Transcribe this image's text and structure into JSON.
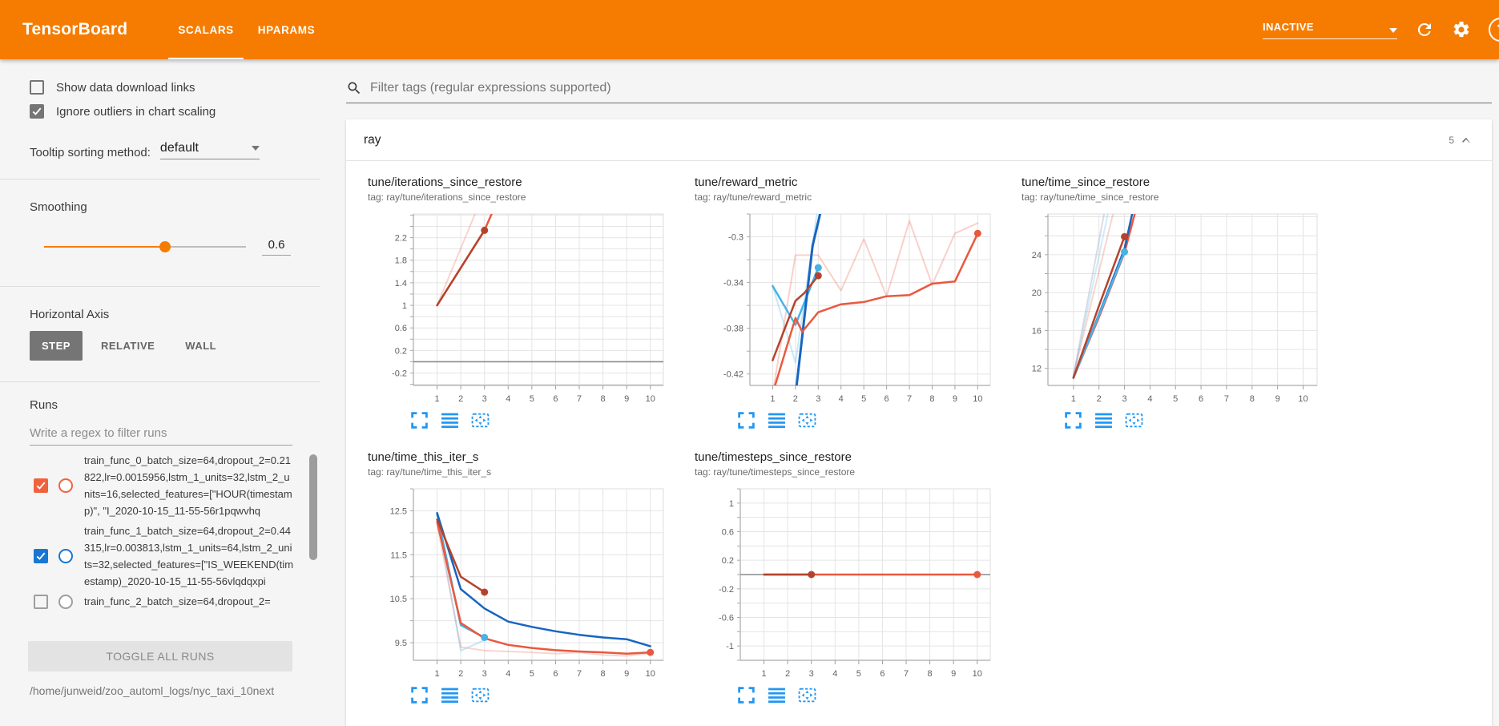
{
  "header": {
    "title": "TensorBoard",
    "tabs": [
      {
        "label": "SCALARS",
        "active": true
      },
      {
        "label": "HPARAMS",
        "active": false
      }
    ],
    "status_dropdown": "INACTIVE",
    "icons": [
      "refresh-icon",
      "settings-icon",
      "help-icon"
    ],
    "accent_color": "#f57c00"
  },
  "sidebar": {
    "checkboxes": [
      {
        "key": "show-download-links",
        "label": "Show data download links",
        "checked": false
      },
      {
        "key": "ignore-outliers",
        "label": "Ignore outliers in chart scaling",
        "checked": true
      }
    ],
    "tooltip_sorting": {
      "label": "Tooltip sorting method:",
      "value": "default"
    },
    "smoothing": {
      "label": "Smoothing",
      "value": "0.6",
      "fraction": 0.6
    },
    "horizontal_axis": {
      "label": "Horizontal Axis",
      "options": [
        "STEP",
        "RELATIVE",
        "WALL"
      ],
      "selected": "STEP"
    },
    "runs": {
      "label": "Runs",
      "filter_placeholder": "Write a regex to filter runs",
      "items": [
        {
          "name": "train_func_0_batch_size=64,dropout_2=0.21822,lr=0.0015956,lstm_1_units=32,lstm_2_units=16,selected_features=[\"HOUR(timestamp)\", \"I_2020-10-15_11-55-56r1pqwvhq",
          "checked": true,
          "color": "#f0623e"
        },
        {
          "name": "train_func_1_batch_size=64,dropout_2=0.44315,lr=0.003813,lstm_1_units=64,lstm_2_units=32,selected_features=[\"IS_WEEKEND(timestamp)_2020-10-15_11-55-56vlqdqxpi",
          "checked": true,
          "color": "#1976d2"
        },
        {
          "name": "train_func_2_batch_size=64,dropout_2=",
          "checked": false,
          "color": "#9e9e9e"
        }
      ],
      "toggle_all_label": "TOGGLE ALL RUNS",
      "log_path": "/home/junweid/zoo_automl_logs/nyc_taxi_10next"
    }
  },
  "main": {
    "filter_placeholder": "Filter tags (regular expressions supported)",
    "group": {
      "name": "ray",
      "count": "5"
    }
  },
  "chart_data": [
    {
      "type": "line",
      "title": "tune/iterations_since_restore",
      "subtitle": "tag: ray/tune/iterations_since_restore",
      "xticks": [
        1,
        2,
        3,
        4,
        5,
        6,
        7,
        8,
        9,
        10
      ],
      "xdomain": [
        0,
        10.55
      ],
      "ylim": [
        -0.42,
        2.62
      ],
      "yticks": [
        [
          -0.2,
          "-0.2"
        ],
        [
          0.2,
          "0.2"
        ],
        [
          0.6,
          "0.6"
        ],
        [
          1,
          "1"
        ],
        [
          1.4,
          "1.4"
        ],
        [
          1.8,
          "1.8"
        ],
        [
          2.2,
          "2.2"
        ]
      ],
      "yminor": 0.2,
      "zero_line": true,
      "series": [
        {
          "name": "run0-raw",
          "color": "#e8593f",
          "opacity": 0.25,
          "width": 2,
          "points": [
            [
              1,
              1
            ],
            [
              2.6,
              2.62
            ]
          ]
        },
        {
          "name": "run0-smoothed",
          "color": "#e8593f",
          "opacity": 1,
          "width": 2.5,
          "points": [
            [
              1,
              1
            ],
            [
              3,
              2.33
            ],
            [
              3.3,
              2.62
            ]
          ]
        },
        {
          "name": "run-darkred-smoothed",
          "color": "#b5432c",
          "opacity": 1,
          "width": 2.5,
          "points": [
            [
              1,
              1
            ],
            [
              3,
              2.33
            ]
          ],
          "dot": [
            3,
            2.33
          ]
        }
      ]
    },
    {
      "type": "line",
      "title": "tune/reward_metric",
      "subtitle": "tag: ray/tune/reward_metric",
      "xticks": [
        1,
        2,
        3,
        4,
        5,
        6,
        7,
        8,
        9,
        10
      ],
      "xdomain": [
        0,
        10.55
      ],
      "ylim": [
        -0.43,
        -0.28
      ],
      "yticks": [
        [
          -0.42,
          "-0.42"
        ],
        [
          -0.38,
          "-0.38"
        ],
        [
          -0.34,
          "-0.34"
        ],
        [
          -0.3,
          "-0.3"
        ]
      ],
      "yminor": 0.02,
      "zero_line": false,
      "series": [
        {
          "name": "run0-raw",
          "color": "#e8593f",
          "opacity": 0.28,
          "width": 2,
          "points": [
            [
              1,
              -0.437
            ],
            [
              2,
              -0.316
            ],
            [
              3,
              -0.316
            ],
            [
              4,
              -0.347
            ],
            [
              5,
              -0.302
            ],
            [
              6,
              -0.352
            ],
            [
              7,
              -0.286
            ],
            [
              8,
              -0.342
            ],
            [
              9,
              -0.297
            ],
            [
              10,
              -0.288
            ]
          ]
        },
        {
          "name": "run-lightblue-raw",
          "color": "#62c1ee",
          "opacity": 0.35,
          "width": 2,
          "points": [
            [
              1,
              -0.343
            ],
            [
              2,
              -0.41
            ],
            [
              3,
              -0.272
            ]
          ]
        },
        {
          "name": "run-lightblue-smoothed",
          "color": "#45b3e8",
          "opacity": 1,
          "width": 2.5,
          "points": [
            [
              1,
              -0.343
            ],
            [
              2,
              -0.377
            ],
            [
              3,
              -0.327
            ]
          ],
          "dot": [
            3,
            -0.327
          ]
        },
        {
          "name": "run1-smoothed",
          "color": "#1765c0",
          "opacity": 1,
          "width": 3,
          "points": [
            [
              2.05,
              -0.43
            ],
            [
              2.75,
              -0.308
            ],
            [
              3.08,
              -0.28
            ]
          ]
        },
        {
          "name": "run-darkred-smoothed",
          "color": "#b5432c",
          "opacity": 1,
          "width": 2.5,
          "points": [
            [
              1,
              -0.408
            ],
            [
              2,
              -0.356
            ],
            [
              2.4,
              -0.349
            ],
            [
              3,
              -0.334
            ]
          ],
          "dot": [
            3,
            -0.334
          ]
        },
        {
          "name": "run0-smoothed",
          "color": "#e8593f",
          "opacity": 1,
          "width": 2.5,
          "points": [
            [
              1,
              -0.437
            ],
            [
              2,
              -0.371
            ],
            [
              2.3,
              -0.383
            ],
            [
              3,
              -0.366
            ],
            [
              4,
              -0.359
            ],
            [
              5,
              -0.357
            ],
            [
              6,
              -0.352
            ],
            [
              7,
              -0.351
            ],
            [
              8,
              -0.341
            ],
            [
              9,
              -0.339
            ],
            [
              10,
              -0.297
            ]
          ],
          "dot": [
            10,
            -0.297
          ]
        }
      ]
    },
    {
      "type": "line",
      "title": "tune/time_since_restore",
      "subtitle": "tag: ray/tune/time_since_restore",
      "xticks": [
        1,
        2,
        3,
        4,
        5,
        6,
        7,
        8,
        9,
        10
      ],
      "xdomain": [
        0,
        10.55
      ],
      "ylim": [
        10.2,
        28.3
      ],
      "yticks": [
        [
          12,
          "12"
        ],
        [
          16,
          "16"
        ],
        [
          20,
          "20"
        ],
        [
          24,
          "24"
        ]
      ],
      "yminor": 2,
      "zero_line": false,
      "series": [
        {
          "name": "run-lavender-raw",
          "color": "#9aa7c4",
          "opacity": 0.4,
          "width": 2,
          "points": [
            [
              1,
              11.2
            ],
            [
              2.2,
              28.3
            ]
          ]
        },
        {
          "name": "run-lightblue-raw",
          "color": "#62c1ee",
          "opacity": 0.3,
          "width": 2,
          "points": [
            [
              1,
              11.2
            ],
            [
              2.35,
              28.3
            ]
          ]
        },
        {
          "name": "run0-raw",
          "color": "#e8593f",
          "opacity": 0.25,
          "width": 2,
          "points": [
            [
              1,
              11.2
            ],
            [
              2.55,
              28.3
            ]
          ]
        },
        {
          "name": "run0-smoothed",
          "color": "#e8593f",
          "opacity": 1,
          "width": 2.5,
          "points": [
            [
              1,
              11.0
            ],
            [
              2,
              17.4
            ],
            [
              3,
              24.2
            ],
            [
              3.4,
              28.3
            ]
          ]
        },
        {
          "name": "run1-smoothed",
          "color": "#1765c0",
          "opacity": 1,
          "width": 2.5,
          "points": [
            [
              1,
              11.0
            ],
            [
              2,
              17.7
            ],
            [
              3,
              24.6
            ],
            [
              3.3,
              28.3
            ]
          ]
        },
        {
          "name": "run-lightblue-smoothed",
          "color": "#45b3e8",
          "opacity": 1,
          "width": 2.5,
          "points": [
            [
              1,
              11.0
            ],
            [
              2,
              17.6
            ],
            [
              3,
              24.3
            ]
          ],
          "dot": [
            3,
            24.3
          ]
        },
        {
          "name": "run-darkred-smoothed",
          "color": "#b5432c",
          "opacity": 1,
          "width": 2.5,
          "points": [
            [
              1,
              11.0
            ],
            [
              2,
              18.6
            ],
            [
              3,
              25.9
            ]
          ],
          "dot": [
            3,
            25.9
          ]
        }
      ]
    },
    {
      "type": "line",
      "title": "tune/time_this_iter_s",
      "subtitle": "tag: ray/tune/time_this_iter_s",
      "xticks": [
        1,
        2,
        3,
        4,
        5,
        6,
        7,
        8,
        9,
        10
      ],
      "xdomain": [
        0,
        10.55
      ],
      "ylim": [
        9.1,
        13.0
      ],
      "yticks": [
        [
          9.5,
          "9.5"
        ],
        [
          10.5,
          "10.5"
        ],
        [
          11.5,
          "11.5"
        ],
        [
          12.5,
          "12.5"
        ]
      ],
      "yminor": 0.5,
      "zero_line": false,
      "series": [
        {
          "name": "run0-raw",
          "color": "#e8593f",
          "opacity": 0.25,
          "width": 2,
          "points": [
            [
              1,
              12.2
            ],
            [
              2,
              9.4
            ],
            [
              3,
              9.32
            ],
            [
              4,
              9.3
            ],
            [
              5,
              9.28
            ],
            [
              6,
              9.25
            ],
            [
              7,
              9.28
            ],
            [
              8,
              9.22
            ],
            [
              9,
              9.2
            ],
            [
              10,
              9.26
            ]
          ]
        },
        {
          "name": "run-lightblue-raw",
          "color": "#62c1ee",
          "opacity": 0.35,
          "width": 2,
          "points": [
            [
              1,
              12.4
            ],
            [
              2,
              9.32
            ],
            [
              3,
              9.56
            ]
          ]
        },
        {
          "name": "run-lightblue-smoothed",
          "color": "#45b3e8",
          "opacity": 1,
          "width": 2.5,
          "points": [
            [
              1,
              12.42
            ],
            [
              2,
              9.9
            ],
            [
              3,
              9.62
            ]
          ],
          "dot": [
            3,
            9.62
          ]
        },
        {
          "name": "run1-smoothed",
          "color": "#1765c0",
          "opacity": 1,
          "width": 2.5,
          "points": [
            [
              1,
              12.45
            ],
            [
              2,
              10.72
            ],
            [
              3,
              10.28
            ],
            [
              4,
              9.98
            ],
            [
              5,
              9.86
            ],
            [
              6,
              9.76
            ],
            [
              7,
              9.68
            ],
            [
              8,
              9.62
            ],
            [
              9,
              9.58
            ],
            [
              10,
              9.42
            ]
          ]
        },
        {
          "name": "run0-smoothed",
          "color": "#e8593f",
          "opacity": 1,
          "width": 2.5,
          "points": [
            [
              1,
              12.25
            ],
            [
              2,
              9.95
            ],
            [
              3,
              9.6
            ],
            [
              4,
              9.45
            ],
            [
              5,
              9.38
            ],
            [
              6,
              9.33
            ],
            [
              7,
              9.3
            ],
            [
              8,
              9.28
            ],
            [
              9,
              9.25
            ],
            [
              10,
              9.28
            ]
          ],
          "dot": [
            10,
            9.28
          ]
        },
        {
          "name": "run-darkred-smoothed",
          "color": "#b5432c",
          "opacity": 1,
          "width": 2.5,
          "points": [
            [
              1,
              12.3
            ],
            [
              2,
              11.0
            ],
            [
              3,
              10.65
            ]
          ],
          "dot": [
            3,
            10.65
          ]
        }
      ]
    },
    {
      "type": "line",
      "title": "tune/timesteps_since_restore",
      "subtitle": "tag: ray/tune/timesteps_since_restore",
      "xticks": [
        1,
        2,
        3,
        4,
        5,
        6,
        7,
        8,
        9,
        10
      ],
      "xdomain": [
        0,
        10.55
      ],
      "ylim": [
        -1.2,
        1.2
      ],
      "yticks": [
        [
          -1,
          "-1"
        ],
        [
          -0.6,
          "-0.6"
        ],
        [
          -0.2,
          "-0.2"
        ],
        [
          0.2,
          "0.2"
        ],
        [
          0.6,
          "0.6"
        ],
        [
          1,
          "1"
        ]
      ],
      "yminor": 0.2,
      "zero_line": true,
      "series": [
        {
          "name": "run0-smoothed",
          "color": "#e8593f",
          "opacity": 1,
          "width": 2.5,
          "points": [
            [
              1,
              0
            ],
            [
              10,
              0
            ]
          ],
          "dot": [
            10,
            0
          ]
        },
        {
          "name": "run-darkred-smoothed",
          "color": "#b5432c",
          "opacity": 1,
          "width": 2.5,
          "points": [
            [
              1,
              0
            ],
            [
              3,
              0
            ]
          ],
          "dot": [
            3,
            0
          ]
        }
      ]
    }
  ]
}
